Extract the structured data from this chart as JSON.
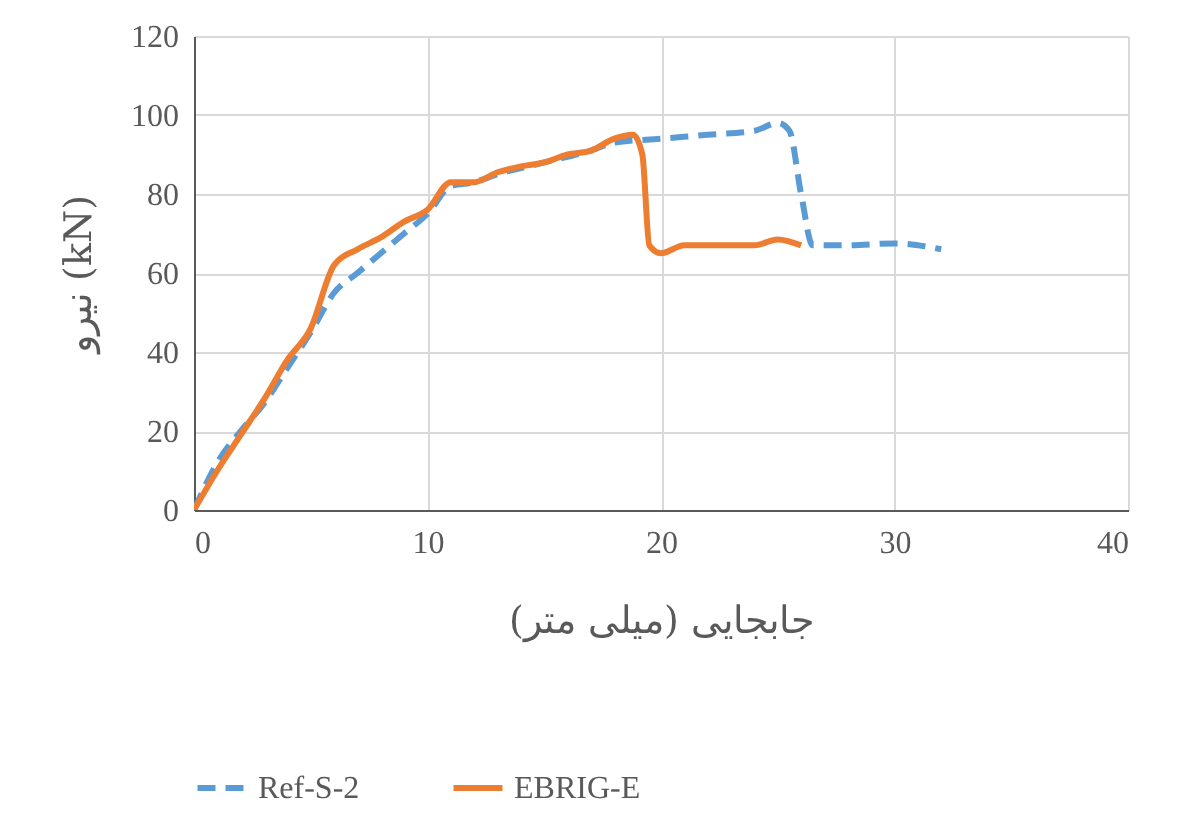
{
  "chart_data": {
    "type": "line",
    "xlabel": "جابجایی (میلی متر)",
    "ylabel": "نیرو (kN)",
    "xlim": [
      0,
      40
    ],
    "xticks": [
      0,
      10,
      20,
      30,
      40
    ],
    "ylim": [
      0,
      120
    ],
    "yticks": [
      0,
      20,
      40,
      60,
      80,
      100,
      120
    ],
    "grid": true,
    "legend": "bottom",
    "series": [
      {
        "name": "Ref-S-2",
        "color": "#5b9bd5",
        "line_style": "dashed",
        "x": [
          0,
          1,
          2,
          3,
          4,
          5,
          6,
          7,
          8,
          9,
          10,
          11,
          12,
          13,
          15,
          17,
          18,
          20,
          22,
          24,
          25,
          25.5,
          26,
          26.5,
          28,
          30,
          32
        ],
        "values": [
          0,
          12,
          20,
          27,
          36,
          45,
          55,
          60,
          65,
          70,
          75,
          82,
          83,
          85,
          88,
          91,
          93,
          94,
          95,
          96,
          98,
          96,
          80,
          67,
          67,
          67.5,
          66
        ]
      },
      {
        "name": "EBRIG-E",
        "color": "#ed7d31",
        "line_style": "solid",
        "x": [
          0,
          1,
          2,
          3,
          4,
          5,
          6,
          7,
          8,
          9,
          10,
          11,
          12,
          13,
          14,
          15,
          16,
          17,
          18,
          18.8,
          19.2,
          19.5,
          20,
          21,
          24,
          25,
          26
        ],
        "values": [
          0,
          10,
          19,
          28,
          38,
          46,
          62,
          66,
          69,
          73,
          76,
          83,
          83,
          85.5,
          87,
          88,
          90,
          91,
          94,
          95,
          90,
          67,
          65,
          67,
          67,
          68.5,
          67
        ]
      }
    ]
  }
}
